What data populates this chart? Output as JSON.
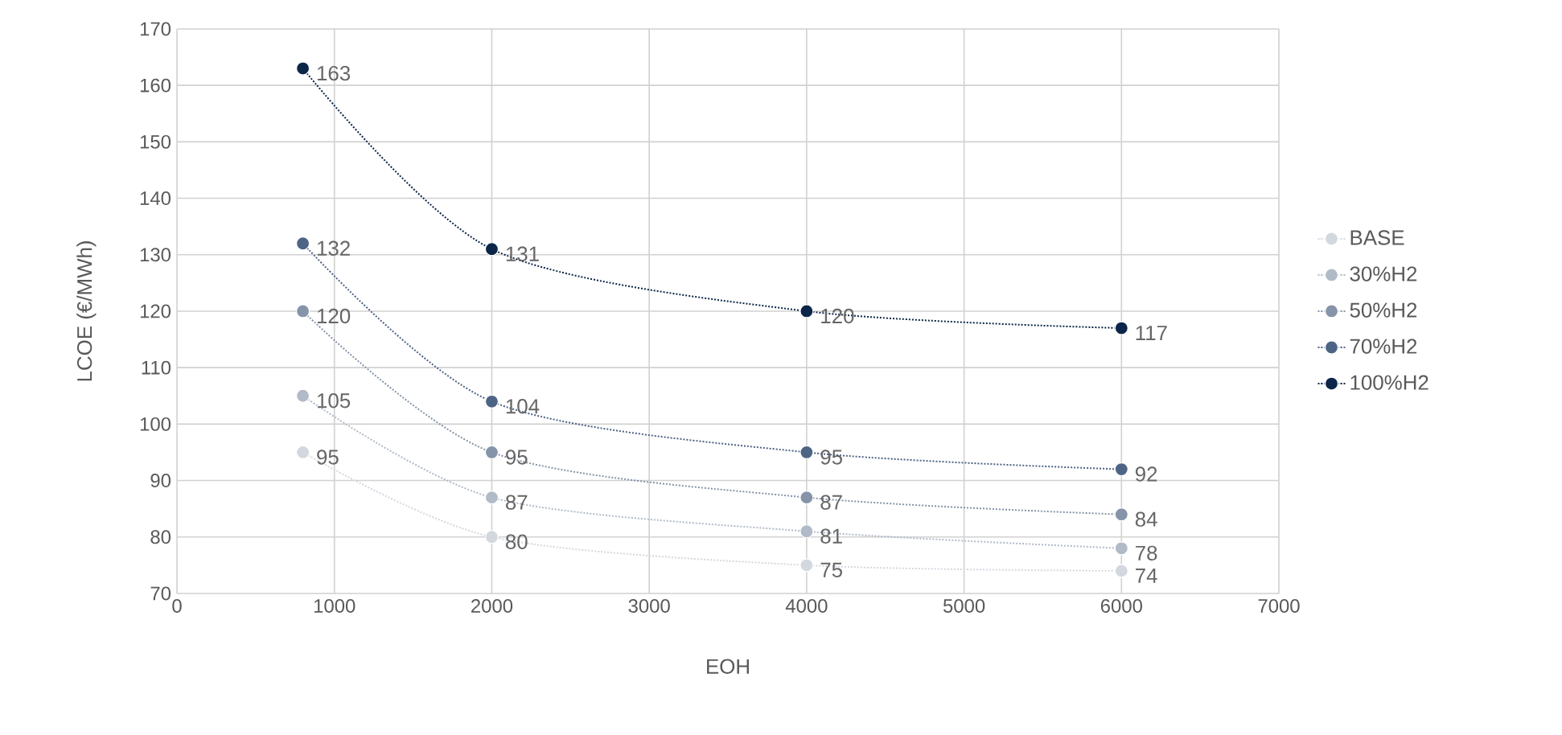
{
  "chart_data": {
    "type": "line",
    "xlabel": "EOH",
    "ylabel": "LCOE (€/MWh)",
    "x": [
      800,
      2000,
      4000,
      6000
    ],
    "series": [
      {
        "name": "BASE",
        "color": "#d3d8df",
        "values": [
          95,
          80,
          75,
          74
        ]
      },
      {
        "name": "30%H2",
        "color": "#b1bac7",
        "values": [
          105,
          87,
          81,
          78
        ]
      },
      {
        "name": "50%H2",
        "color": "#8594a8",
        "values": [
          120,
          95,
          87,
          84
        ]
      },
      {
        "name": "70%H2",
        "color": "#4d6485",
        "values": [
          132,
          104,
          95,
          92
        ]
      },
      {
        "name": "100%H2",
        "color": "#0b2649",
        "values": [
          163,
          131,
          120,
          117
        ]
      }
    ],
    "xlim": [
      0,
      7000
    ],
    "xticks": [
      0,
      1000,
      2000,
      3000,
      4000,
      5000,
      6000,
      7000
    ],
    "ylim": [
      70,
      170
    ],
    "yticks": [
      70,
      80,
      90,
      100,
      110,
      120,
      130,
      140,
      150,
      160,
      170
    ],
    "grid": true,
    "legend": "right",
    "marker": "circle",
    "line_style": "dotted",
    "data_labels": true
  }
}
